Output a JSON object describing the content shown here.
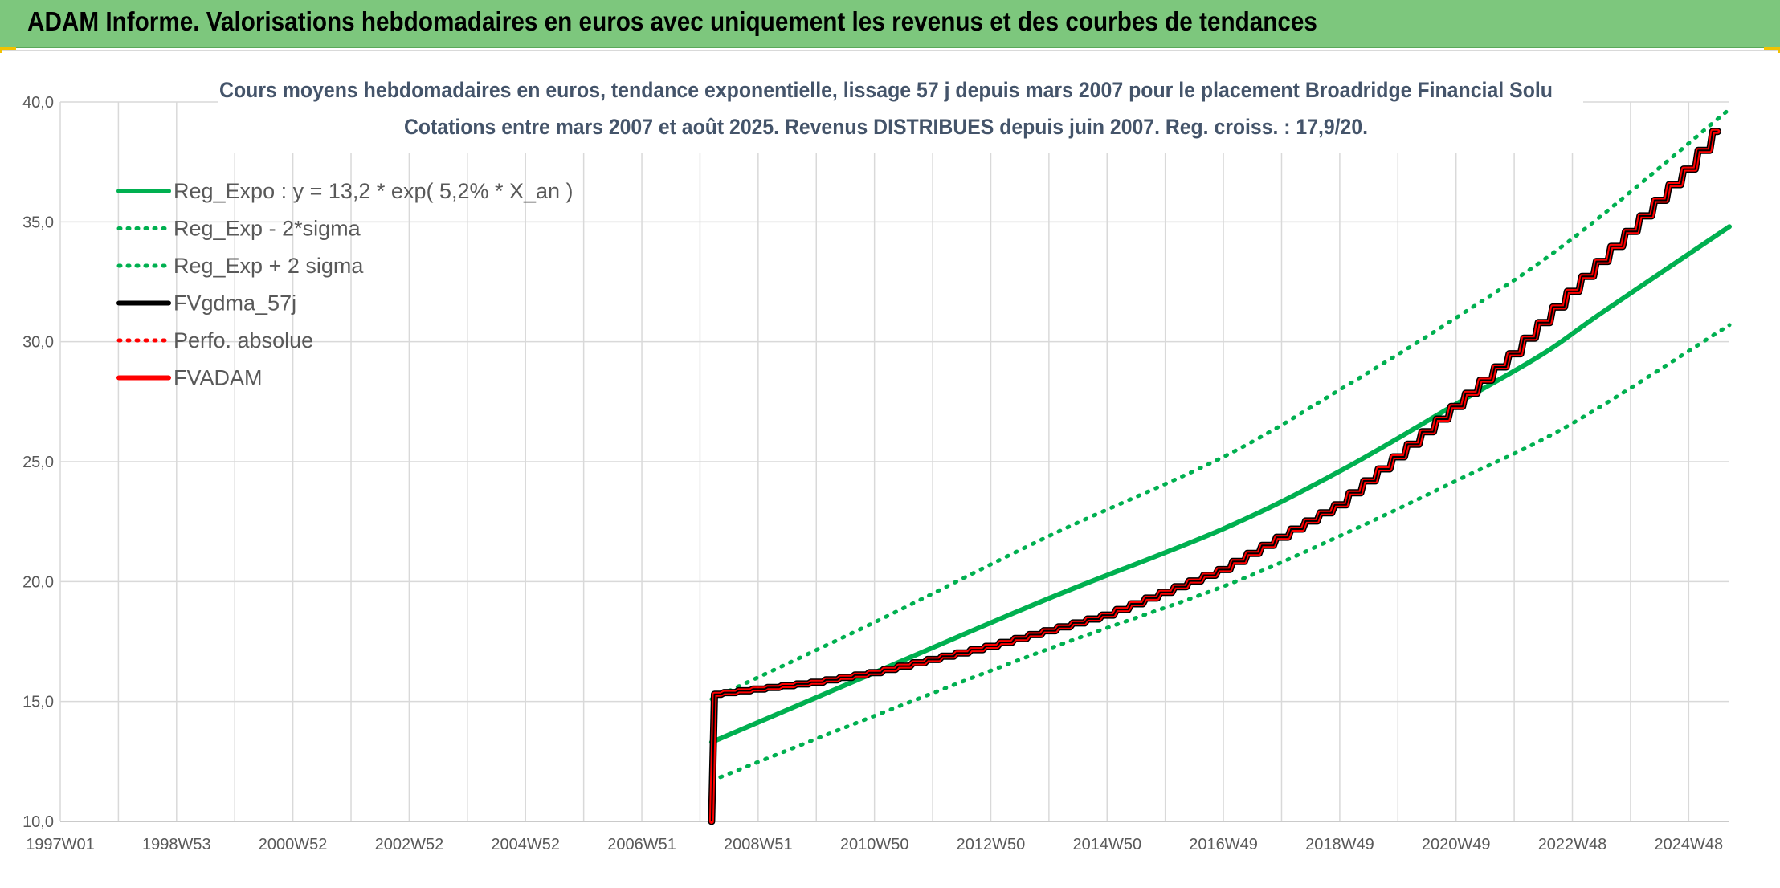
{
  "header": {
    "title": "ADAM Informe. Valorisations hebdomadaires en euros avec uniquement les revenus et des courbes de tendances"
  },
  "colors": {
    "banner": "#7dc77d",
    "trend": "#00b050",
    "fvadam": "#ff0000",
    "fvgdma": "#000000",
    "grid": "#d9d9d9",
    "title": "#44546a"
  },
  "chart_data": {
    "type": "line",
    "title": "Cours moyens hebdomadaires en euros, tendance exponentielle, lissage 57 j depuis mars 2007 pour le placement Broadridge Financial Solu",
    "subtitle": "Cotations entre mars 2007 et août 2025. Revenus DISTRIBUES depuis juin 2007. Reg. croiss. : 17,9/20.",
    "xlabel": "",
    "ylabel": "",
    "xlim": [
      1997.0,
      2025.7
    ],
    "ylim": [
      10.0,
      40.0
    ],
    "grid": true,
    "legend_position": "top-left",
    "x_tick_labels": [
      {
        "x": 1997.0,
        "label": "1997W01"
      },
      {
        "x": 1999.0,
        "label": "1998W53"
      },
      {
        "x": 2001.0,
        "label": "2000W52"
      },
      {
        "x": 2003.0,
        "label": "2002W52"
      },
      {
        "x": 2005.0,
        "label": "2004W52"
      },
      {
        "x": 2007.0,
        "label": "2006W51"
      },
      {
        "x": 2009.0,
        "label": "2008W51"
      },
      {
        "x": 2011.0,
        "label": "2010W50"
      },
      {
        "x": 2013.0,
        "label": "2012W50"
      },
      {
        "x": 2015.0,
        "label": "2014W50"
      },
      {
        "x": 2017.0,
        "label": "2016W49"
      },
      {
        "x": 2019.0,
        "label": "2018W49"
      },
      {
        "x": 2021.0,
        "label": "2020W49"
      },
      {
        "x": 2023.0,
        "label": "2022W48"
      },
      {
        "x": 2025.0,
        "label": "2024W48"
      }
    ],
    "x_minor_ticks": [
      1998.0,
      2000.0,
      2002.0,
      2004.0,
      2006.0,
      2008.0,
      2010.0,
      2012.0,
      2014.0,
      2016.0,
      2018.0,
      2020.0,
      2022.0,
      2024.0
    ],
    "y_ticks": [
      {
        "value": 10.0,
        "label": "10,0"
      },
      {
        "value": 15.0,
        "label": "15,0"
      },
      {
        "value": 20.0,
        "label": "20,0"
      },
      {
        "value": 25.0,
        "label": "25,0"
      },
      {
        "value": 30.0,
        "label": "30,0"
      },
      {
        "value": 35.0,
        "label": "35,0"
      },
      {
        "value": 40.0,
        "label": "40,0"
      }
    ],
    "series": [
      {
        "name": "Reg_Expo : y = 13,2 * exp( 5,2% *  X_an )",
        "color": "#00b050",
        "style": "solid",
        "width": 6,
        "x": [
          2008.2,
          2011.0,
          2014.0,
          2017.0,
          2019.0,
          2021.0,
          2022.5,
          2023.5,
          2025.7
        ],
        "y": [
          13.3,
          16.2,
          19.3,
          22.2,
          24.6,
          27.4,
          29.5,
          31.2,
          34.8
        ]
      },
      {
        "name": "Reg_Exp - 2*sigma",
        "color": "#00b050",
        "style": "dotted",
        "width": 5,
        "x": [
          2008.2,
          2011.0,
          2014.0,
          2017.0,
          2019.0,
          2021.0,
          2023.0,
          2025.7
        ],
        "y": [
          11.7,
          14.4,
          17.2,
          19.8,
          21.9,
          24.2,
          26.6,
          30.7
        ]
      },
      {
        "name": "Reg_Exp + 2 sigma",
        "color": "#00b050",
        "style": "dotted",
        "width": 5,
        "x": [
          2008.2,
          2011.0,
          2014.0,
          2017.0,
          2019.0,
          2021.0,
          2023.0,
          2025.7
        ],
        "y": [
          15.1,
          18.3,
          21.9,
          25.2,
          28.0,
          31.0,
          34.3,
          39.7
        ]
      },
      {
        "name": "FVgdma_57j",
        "color": "#000000",
        "style": "solid",
        "width": 9,
        "x": [
          2008.2,
          2008.25,
          2010.0,
          2011.0,
          2013.0,
          2015.0,
          2017.0,
          2019.0,
          2020.0,
          2021.0,
          2022.0,
          2023.0,
          2024.0,
          2025.0,
          2025.7
        ],
        "y": [
          10.0,
          15.3,
          15.8,
          16.2,
          17.3,
          18.6,
          20.5,
          23.2,
          25.2,
          27.3,
          29.5,
          32.1,
          34.6,
          37.2,
          39.4
        ]
      },
      {
        "name": "Perfo. absolue",
        "color": "#ff0000",
        "style": "dotted",
        "width": 3,
        "x": [
          2008.25,
          2010.0,
          2011.0,
          2013.0,
          2015.0,
          2017.0,
          2019.0,
          2020.0,
          2021.0,
          2022.0,
          2023.0,
          2024.0,
          2025.0,
          2025.7
        ],
        "y": [
          15.3,
          15.8,
          16.2,
          17.3,
          18.6,
          20.5,
          23.2,
          25.2,
          27.3,
          29.5,
          32.1,
          34.6,
          37.2,
          39.4
        ]
      },
      {
        "name": "FVADAM",
        "color": "#ff0000",
        "style": "solid",
        "width": 6,
        "x": [
          2008.2,
          2008.25,
          2010.0,
          2011.0,
          2013.0,
          2015.0,
          2017.0,
          2019.0,
          2020.0,
          2021.0,
          2022.0,
          2023.0,
          2024.0,
          2025.0,
          2025.7
        ],
        "y": [
          10.0,
          15.3,
          15.8,
          16.2,
          17.3,
          18.6,
          20.5,
          23.2,
          25.2,
          27.3,
          29.5,
          32.1,
          34.6,
          37.2,
          39.4
        ]
      }
    ]
  }
}
